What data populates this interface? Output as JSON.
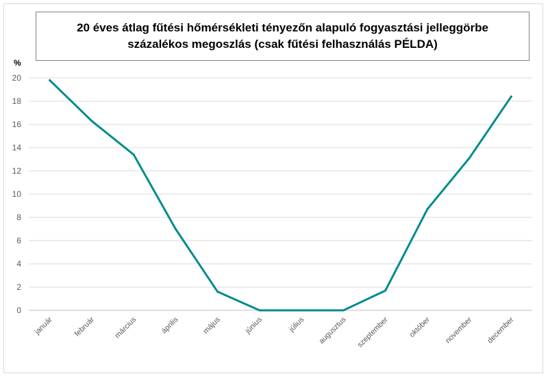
{
  "chart_data": {
    "type": "line",
    "title": "20 éves átlag fűtési hőmérsékleti tényezőn alapuló fogyasztási jelleggörbe százalékos megoszlás (csak fűtési felhasználás PÉLDA)",
    "ylabel": "%",
    "xlabel": "",
    "ylim": [
      0,
      20
    ],
    "yticks": [
      "0",
      "2",
      "4",
      "6",
      "8",
      "10",
      "12",
      "14",
      "16",
      "18",
      "20"
    ],
    "categories": [
      "január",
      "február",
      "március",
      "április",
      "május",
      "június",
      "július",
      "augusztus",
      "szeptember",
      "október",
      "november",
      "december"
    ],
    "series": [
      {
        "values": [
          19.8,
          16.3,
          13.4,
          7.0,
          1.6,
          0.0,
          0.0,
          0.0,
          1.7,
          8.7,
          13.1,
          18.4
        ],
        "color": "#008b8b"
      }
    ],
    "grid": true,
    "legend": "none"
  }
}
